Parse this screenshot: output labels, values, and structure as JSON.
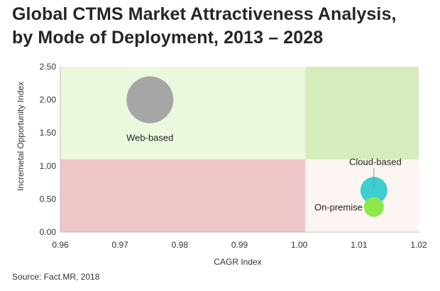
{
  "title_lines": [
    "Global CTMS Market Attractiveness Analysis,",
    "by Mode of Deployment, 2013 – 2028"
  ],
  "source": "Source: Fact.MR, 2018",
  "chart_data": {
    "type": "scatter",
    "title": "Global CTMS Market Attractiveness Analysis, by Mode of Deployment, 2013 – 2028",
    "xlabel": "CAGR Index",
    "ylabel": "Incremetal Opportunity Index",
    "xlim": [
      0.96,
      1.02
    ],
    "ylim": [
      0.0,
      2.5
    ],
    "x_ticks": [
      "0.96",
      "0.97",
      "0.98",
      "0.99",
      "1.00",
      "1.01",
      "1.02"
    ],
    "y_ticks": [
      "0.00",
      "0.50",
      "1.00",
      "1.50",
      "2.00",
      "2.50"
    ],
    "grid": false,
    "quadrants": [
      {
        "x": [
          0.96,
          1.001
        ],
        "y": [
          1.1,
          2.5
        ],
        "color": "#ebf8de"
      },
      {
        "x": [
          1.001,
          1.02
        ],
        "y": [
          1.1,
          2.5
        ],
        "color": "#d5ecbd"
      },
      {
        "x": [
          0.96,
          1.001
        ],
        "y": [
          0.0,
          1.1
        ],
        "color": "#efc6c8"
      },
      {
        "x": [
          1.001,
          1.02
        ],
        "y": [
          0.0,
          1.1
        ],
        "color": "#fdf5f1"
      }
    ],
    "series": [
      {
        "name": "Web-based",
        "x": 0.975,
        "y": 2.0,
        "color": "#a6a6a6"
      },
      {
        "name": "Cloud-based",
        "x": 1.0125,
        "y": 0.63,
        "color": "#3ecfd0"
      },
      {
        "name": "On-premise",
        "x": 1.0125,
        "y": 0.38,
        "color": "#8fe84a"
      }
    ]
  }
}
